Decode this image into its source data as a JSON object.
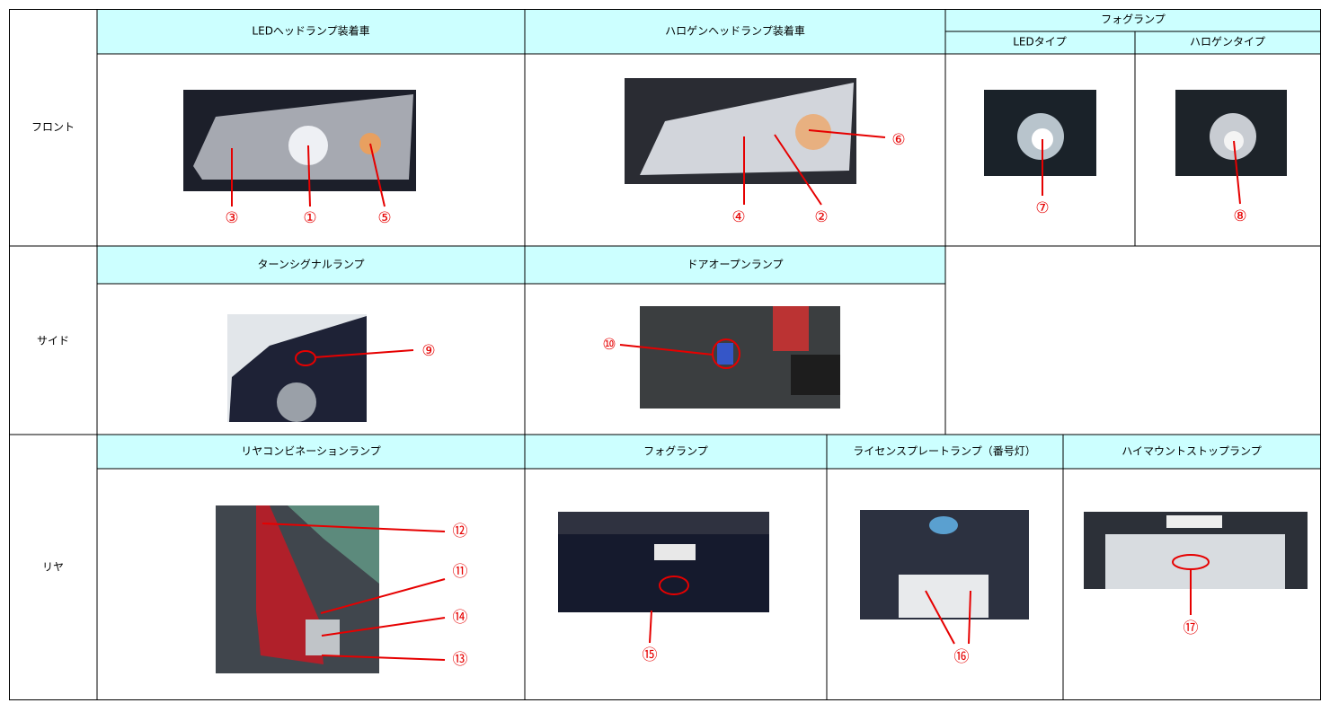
{
  "front": {
    "label": "フロント",
    "led_header": "LEDヘッドランプ装着車",
    "halogen_header": "ハロゲンヘッドランプ装着車",
    "fog_header": "フォグランプ",
    "fog_led_header": "LEDタイプ",
    "fog_halogen_header": "ハロゲンタイプ",
    "callouts": [
      "③",
      "①",
      "⑤",
      "④",
      "②",
      "⑥",
      "⑦",
      "⑧"
    ]
  },
  "side": {
    "label": "サイド",
    "turn_header": "ターンシグナルランプ",
    "door_header": "ドアオープンランプ",
    "callouts": [
      "⑨",
      "⑩"
    ]
  },
  "rear": {
    "label": "リヤ",
    "combination_header": "リヤコンビネーションランプ",
    "fog_header": "フォグランプ",
    "license_header": "ライセンスプレートランプ（番号灯）",
    "highmount_header": "ハイマウントストップランプ",
    "callouts": [
      "⑫",
      "⑪",
      "⑭",
      "⑬",
      "⑮",
      "⑯",
      "⑰"
    ]
  }
}
